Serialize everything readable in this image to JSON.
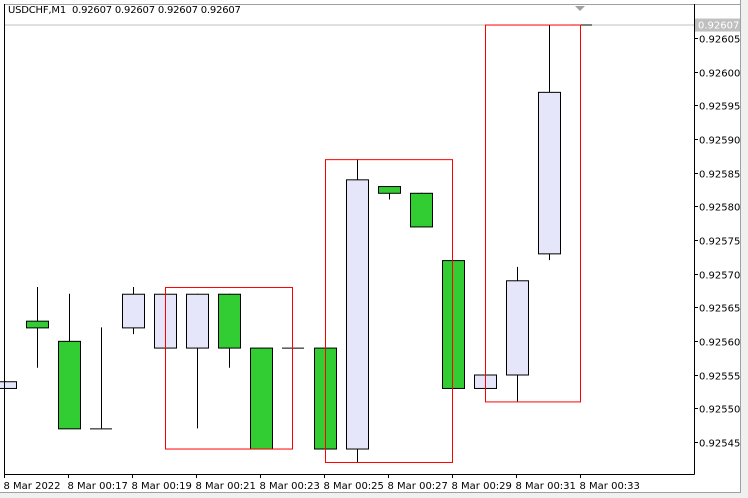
{
  "header": {
    "symbol_label": "USDCHF,M1",
    "ohlc_text": "0.92607 0.92607 0.92607 0.92607"
  },
  "chart_data": {
    "type": "candlestick",
    "symbol": "USDCHF",
    "timeframe": "M1",
    "y_range": [
      0.92542,
      0.92609
    ],
    "y_ticks": [
      "0.92605",
      "0.92600",
      "0.92595",
      "0.92590",
      "0.92585",
      "0.92580",
      "0.92575",
      "0.92570",
      "0.92565",
      "0.92560",
      "0.92555",
      "0.92550",
      "0.92545"
    ],
    "x_tick_labels": [
      "8 Mar 2022",
      "8 Mar 00:17",
      "8 Mar 00:19",
      "8 Mar 00:21",
      "8 Mar 00:23",
      "8 Mar 00:25",
      "8 Mar 00:27",
      "8 Mar 00:29",
      "8 Mar 00:31",
      "8 Mar 00:33"
    ],
    "current_price_label": "0.92607",
    "candles": [
      {
        "time": "00:15",
        "open": 0.92553,
        "high": 0.92554,
        "low": 0.92553,
        "close": 0.92554
      },
      {
        "time": "00:16",
        "open": 0.92563,
        "high": 0.92568,
        "low": 0.92556,
        "close": 0.92562
      },
      {
        "time": "00:17",
        "open": 0.9256,
        "high": 0.92567,
        "low": 0.92547,
        "close": 0.92547
      },
      {
        "time": "00:18",
        "open": 0.92547,
        "high": 0.92562,
        "low": 0.92547,
        "close": 0.92547
      },
      {
        "time": "00:19",
        "open": 0.92562,
        "high": 0.92568,
        "low": 0.92561,
        "close": 0.92567
      },
      {
        "time": "00:20",
        "open": 0.92559,
        "high": 0.92567,
        "low": 0.92559,
        "close": 0.92567
      },
      {
        "time": "00:21",
        "open": 0.92559,
        "high": 0.92567,
        "low": 0.92547,
        "close": 0.92567
      },
      {
        "time": "00:22",
        "open": 0.92567,
        "high": 0.92567,
        "low": 0.92556,
        "close": 0.92559
      },
      {
        "time": "00:23",
        "open": 0.92559,
        "high": 0.92559,
        "low": 0.92544,
        "close": 0.92544
      },
      {
        "time": "00:24",
        "open": 0.92559,
        "high": 0.92559,
        "low": 0.92559,
        "close": 0.92559
      },
      {
        "time": "00:25",
        "open": 0.92559,
        "high": 0.92559,
        "low": 0.92544,
        "close": 0.92544
      },
      {
        "time": "00:26",
        "open": 0.92544,
        "high": 0.92587,
        "low": 0.92542,
        "close": 0.92584
      },
      {
        "time": "00:27",
        "open": 0.92583,
        "high": 0.92583,
        "low": 0.92581,
        "close": 0.92582
      },
      {
        "time": "00:28",
        "open": 0.92582,
        "high": 0.92582,
        "low": 0.92577,
        "close": 0.92577
      },
      {
        "time": "00:29",
        "open": 0.92572,
        "high": 0.92572,
        "low": 0.92553,
        "close": 0.92553
      },
      {
        "time": "00:30",
        "open": 0.92553,
        "high": 0.92555,
        "low": 0.92553,
        "close": 0.92555
      },
      {
        "time": "00:31",
        "open": 0.92555,
        "high": 0.92571,
        "low": 0.92551,
        "close": 0.92569
      },
      {
        "time": "00:32",
        "open": 0.92573,
        "high": 0.92607,
        "low": 0.92572,
        "close": 0.92597
      },
      {
        "time": "00:33",
        "open": 0.92607,
        "high": 0.92607,
        "low": 0.92607,
        "close": 0.92607
      }
    ],
    "rectangles": [
      {
        "from": "00:20",
        "to": "00:24",
        "top": 0.92568,
        "bottom": 0.92544
      },
      {
        "from": "00:25",
        "to": "00:29",
        "top": 0.92587,
        "bottom": 0.92542
      },
      {
        "from": "00:30",
        "to": "00:33",
        "top": 0.92607,
        "bottom": 0.92551
      }
    ],
    "colors": {
      "bull": "#e6e6fa",
      "bear": "#32cd32",
      "outline": "#000000",
      "rectangle": "#ff0000",
      "bid_line": "#c0c0c0",
      "price_label_bg": "#c0c0c0"
    },
    "grid": false
  }
}
